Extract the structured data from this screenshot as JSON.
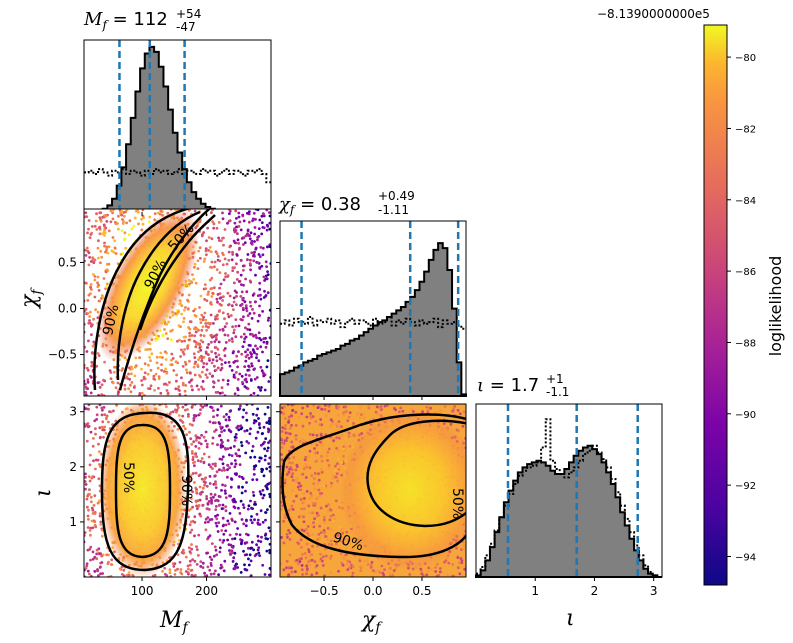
{
  "chart_data": {
    "type": "corner",
    "parameters": [
      {
        "key": "Mf",
        "label": "M_f",
        "title_value": "112",
        "title_up": "+54",
        "title_down": "-47",
        "range": [
          10,
          300
        ],
        "ticks": [
          100,
          200
        ],
        "tick_labels": [
          "100",
          "200"
        ],
        "quantiles": [
          65,
          112,
          166
        ]
      },
      {
        "key": "chif",
        "label": "χ_f",
        "title_value": "0.38",
        "title_up": "+0.49",
        "title_down": "-1.11",
        "range": [
          -0.95,
          0.95
        ],
        "ticks": [
          -0.5,
          0,
          0.5
        ],
        "tick_labels": [
          "−0.5",
          "0.0",
          "0.5"
        ],
        "quantiles": [
          -0.73,
          0.38,
          0.87
        ]
      },
      {
        "key": "iota",
        "label": "ι",
        "title_value": "1.7",
        "title_up": "+1",
        "title_down": "-1.1",
        "range": [
          0,
          3.14
        ],
        "ticks": [
          1,
          2,
          3
        ],
        "tick_labels": [
          "1",
          "2",
          "3"
        ],
        "quantiles": [
          0.54,
          1.7,
          2.73
        ]
      }
    ],
    "histograms": {
      "Mf": {
        "posterior": [
          0,
          0,
          0,
          0.01,
          0.02,
          0.04,
          0.08,
          0.16,
          0.27,
          0.41,
          0.57,
          0.73,
          0.87,
          0.96,
          1.0,
          0.97,
          0.88,
          0.76,
          0.62,
          0.48,
          0.36,
          0.26,
          0.18,
          0.12,
          0.08,
          0.05,
          0.03,
          0.02,
          0.01,
          0.01,
          0,
          0,
          0,
          0,
          0,
          0,
          0,
          0,
          0,
          0
        ],
        "prior": [
          0.24,
          0.25,
          0.23,
          0.26,
          0.24,
          0.22,
          0.25,
          0.24,
          0.26,
          0.23,
          0.25,
          0.24,
          0.22,
          0.25,
          0.23,
          0.26,
          0.24,
          0.25,
          0.23,
          0.24,
          0.26,
          0.22,
          0.25,
          0.24,
          0.23,
          0.26,
          0.24,
          0.25,
          0.22,
          0.24,
          0.26,
          0.23,
          0.25,
          0.24,
          0.22,
          0.25,
          0.24,
          0.26,
          0.23,
          0.18
        ]
      },
      "chif": {
        "posterior": [
          0.13,
          0.14,
          0.15,
          0.17,
          0.18,
          0.2,
          0.21,
          0.22,
          0.24,
          0.25,
          0.26,
          0.27,
          0.28,
          0.3,
          0.31,
          0.33,
          0.34,
          0.36,
          0.38,
          0.4,
          0.42,
          0.44,
          0.45,
          0.47,
          0.49,
          0.51,
          0.53,
          0.56,
          0.59,
          0.63,
          0.68,
          0.74,
          0.81,
          0.87,
          0.91,
          0.88,
          0.75,
          0.52,
          0.2,
          0.01
        ],
        "prior": [
          0.43,
          0.45,
          0.42,
          0.46,
          0.44,
          0.43,
          0.47,
          0.42,
          0.45,
          0.44,
          0.46,
          0.43,
          0.45,
          0.41,
          0.44,
          0.46,
          0.43,
          0.45,
          0.44,
          0.42,
          0.46,
          0.43,
          0.44,
          0.47,
          0.42,
          0.45,
          0.43,
          0.46,
          0.44,
          0.42,
          0.45,
          0.43,
          0.44,
          0.46,
          0.41,
          0.45,
          0.43,
          0.44,
          0.42,
          0.4
        ]
      },
      "iota": {
        "posterior": [
          0.01,
          0.04,
          0.1,
          0.18,
          0.27,
          0.36,
          0.45,
          0.52,
          0.58,
          0.63,
          0.66,
          0.68,
          0.69,
          0.7,
          0.69,
          0.67,
          0.64,
          0.62,
          0.62,
          0.65,
          0.69,
          0.73,
          0.76,
          0.78,
          0.79,
          0.77,
          0.74,
          0.69,
          0.63,
          0.56,
          0.48,
          0.39,
          0.31,
          0.23,
          0.16,
          0.1,
          0.05,
          0.02,
          0.01,
          0
        ],
        "prior": [
          0.02,
          0.06,
          0.13,
          0.2,
          0.28,
          0.36,
          0.43,
          0.5,
          0.56,
          0.61,
          0.64,
          0.66,
          0.67,
          0.69,
          0.78,
          0.95,
          0.7,
          0.65,
          0.62,
          0.6,
          0.63,
          0.66,
          0.7,
          0.74,
          0.76,
          0.79,
          0.75,
          0.71,
          0.66,
          0.59,
          0.51,
          0.43,
          0.35,
          0.27,
          0.19,
          0.13,
          0.07,
          0.03,
          0.01,
          0
        ]
      }
    },
    "contour_labels": {
      "mf_chif": [
        "50%",
        "90%",
        "90%"
      ],
      "mf_iota": [
        "50%",
        "90%"
      ],
      "chif_iota": [
        "90%",
        "50%"
      ]
    },
    "colorbar": {
      "label": "loglikelihood",
      "offset_text": "−8.1390000000e5",
      "range": [
        -94.8,
        -79.1
      ],
      "ticks": [
        -94,
        -92,
        -90,
        -88,
        -86,
        -84,
        -82,
        -80
      ],
      "tick_labels": [
        "−94",
        "−92",
        "−90",
        "−88",
        "−86",
        "−84",
        "−82",
        "−80"
      ],
      "colormap": "plasma"
    },
    "colors": {
      "posterior_fill": "#808080",
      "quantile_line": "#1f77b4",
      "contour": "#000000"
    }
  }
}
